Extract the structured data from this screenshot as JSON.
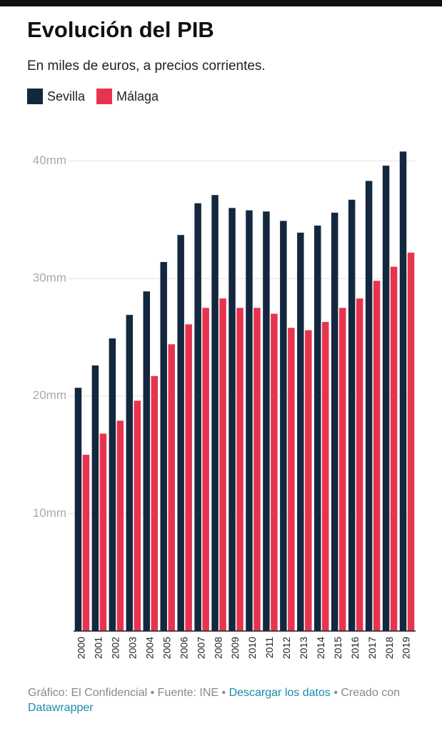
{
  "chart_data": {
    "type": "bar",
    "title": "Evolución del PIB",
    "subtitle": "En miles de euros, a precios corrientes.",
    "categories": [
      "2000",
      "2001",
      "2002",
      "2003",
      "2004",
      "2005",
      "2006",
      "2007",
      "2008",
      "2009",
      "2010",
      "2011",
      "2012",
      "2013",
      "2014",
      "2015",
      "2016",
      "2017",
      "2018",
      "2019"
    ],
    "series": [
      {
        "name": "Sevilla",
        "color": "#13283f",
        "values": [
          20.7,
          22.6,
          24.9,
          26.9,
          28.9,
          31.4,
          33.7,
          36.4,
          37.1,
          36.0,
          35.8,
          35.7,
          34.9,
          33.9,
          34.5,
          35.6,
          36.7,
          38.3,
          39.6,
          40.8
        ]
      },
      {
        "name": "Málaga",
        "color": "#e8334f",
        "values": [
          15.0,
          16.8,
          17.9,
          19.6,
          21.7,
          24.4,
          26.1,
          27.5,
          28.3,
          27.5,
          27.5,
          27.0,
          25.8,
          25.6,
          26.3,
          27.5,
          28.3,
          29.8,
          31.0,
          32.2
        ]
      }
    ],
    "ylim": [
      0,
      41
    ],
    "yticks": [
      {
        "value": 10,
        "label": "10mm"
      },
      {
        "value": 20,
        "label": "20mm"
      },
      {
        "value": 30,
        "label": "30mm"
      },
      {
        "value": 40,
        "label": "40mm"
      }
    ],
    "grid": true,
    "footer": {
      "credit": "Gráfico: El Confidencial • Fuente: INE •",
      "download": "Descargar los datos",
      "created": "• Creado con",
      "tool": "Datawrapper"
    }
  }
}
